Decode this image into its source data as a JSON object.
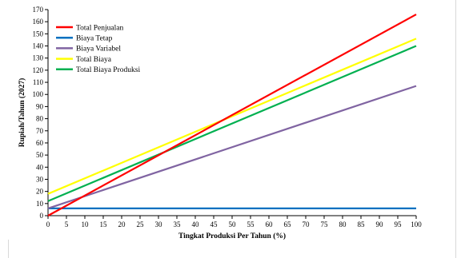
{
  "chart_data": {
    "type": "line",
    "title": "",
    "xlabel": "Tingkat Produksi Per Tahun (%)",
    "ylabel": "Rupiah/Tahun (2027)",
    "xlim": [
      0,
      100
    ],
    "ylim": [
      0,
      170
    ],
    "x_ticks": [
      0,
      5,
      10,
      15,
      20,
      25,
      30,
      35,
      40,
      45,
      50,
      55,
      60,
      65,
      70,
      75,
      80,
      85,
      90,
      95,
      100
    ],
    "y_ticks": [
      0,
      10,
      20,
      30,
      40,
      50,
      60,
      70,
      80,
      90,
      100,
      110,
      120,
      130,
      140,
      150,
      160,
      170
    ],
    "grid": false,
    "legend_position": "top-left",
    "series": [
      {
        "name": "Total Penjualan",
        "color": "#ff0000",
        "x": [
          0,
          100
        ],
        "y": [
          0,
          166
        ]
      },
      {
        "name": "Biaya Tetap",
        "color": "#0070c0",
        "x": [
          0,
          100
        ],
        "y": [
          6,
          6
        ]
      },
      {
        "name": "Biaya Variabel",
        "color": "#8064a2",
        "x": [
          0,
          100
        ],
        "y": [
          6,
          107
        ]
      },
      {
        "name": "Total Biaya",
        "color": "#ffff00",
        "x": [
          0,
          100
        ],
        "y": [
          18,
          146
        ]
      },
      {
        "name": "Total Biaya Produksi",
        "color": "#00b050",
        "x": [
          0,
          100
        ],
        "y": [
          12,
          140
        ]
      }
    ]
  }
}
